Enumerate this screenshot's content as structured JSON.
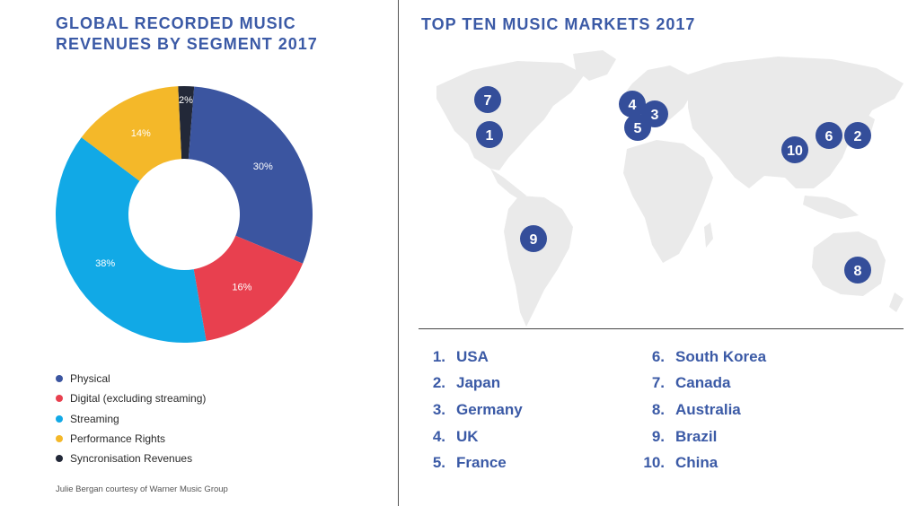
{
  "left": {
    "title": "GLOBAL RECORDED MUSIC REVENUES BY SEGMENT 2017",
    "credit": "Julie Bergan courtesy of Warner Music Group"
  },
  "chart_data": {
    "type": "pie",
    "title": "GLOBAL RECORDED MUSIC REVENUES BY SEGMENT 2017",
    "donut": true,
    "legend_position": "bottom-left",
    "slices": [
      {
        "label": "Physical",
        "value": 30,
        "display": "30%",
        "color": "#3b55a0"
      },
      {
        "label": "Digital (excluding streaming)",
        "value": 16,
        "display": "16%",
        "color": "#e8404f"
      },
      {
        "label": "Streaming",
        "value": 38,
        "display": "38%",
        "color": "#11a9e6"
      },
      {
        "label": "Performance Rights",
        "value": 14,
        "display": "14%",
        "color": "#f4b829"
      },
      {
        "label": "Syncronisation Revenues",
        "value": 2,
        "display": "2%",
        "color": "#222838"
      }
    ]
  },
  "right": {
    "title": "TOP TEN MUSIC MARKETS 2017",
    "marker_color": "#344e9a",
    "markers": [
      {
        "num": "7",
        "country": "Canada"
      },
      {
        "num": "1",
        "country": "USA"
      },
      {
        "num": "4",
        "country": "UK"
      },
      {
        "num": "3",
        "country": "Germany"
      },
      {
        "num": "5",
        "country": "France"
      },
      {
        "num": "6",
        "country": "South Korea"
      },
      {
        "num": "2",
        "country": "Japan"
      },
      {
        "num": "10",
        "country": "China"
      },
      {
        "num": "9",
        "country": "Brazil"
      },
      {
        "num": "8",
        "country": "Australia"
      }
    ],
    "ranking_col1": [
      {
        "num": "1.",
        "name": "USA"
      },
      {
        "num": "2.",
        "name": "Japan"
      },
      {
        "num": "3.",
        "name": "Germany"
      },
      {
        "num": "4.",
        "name": "UK"
      },
      {
        "num": "5.",
        "name": "France"
      }
    ],
    "ranking_col2": [
      {
        "num": "6.",
        "name": "South Korea"
      },
      {
        "num": "7.",
        "name": "Canada"
      },
      {
        "num": "8.",
        "name": "Australia"
      },
      {
        "num": "9.",
        "name": "Brazil"
      },
      {
        "num": "10.",
        "name": "China"
      }
    ]
  }
}
